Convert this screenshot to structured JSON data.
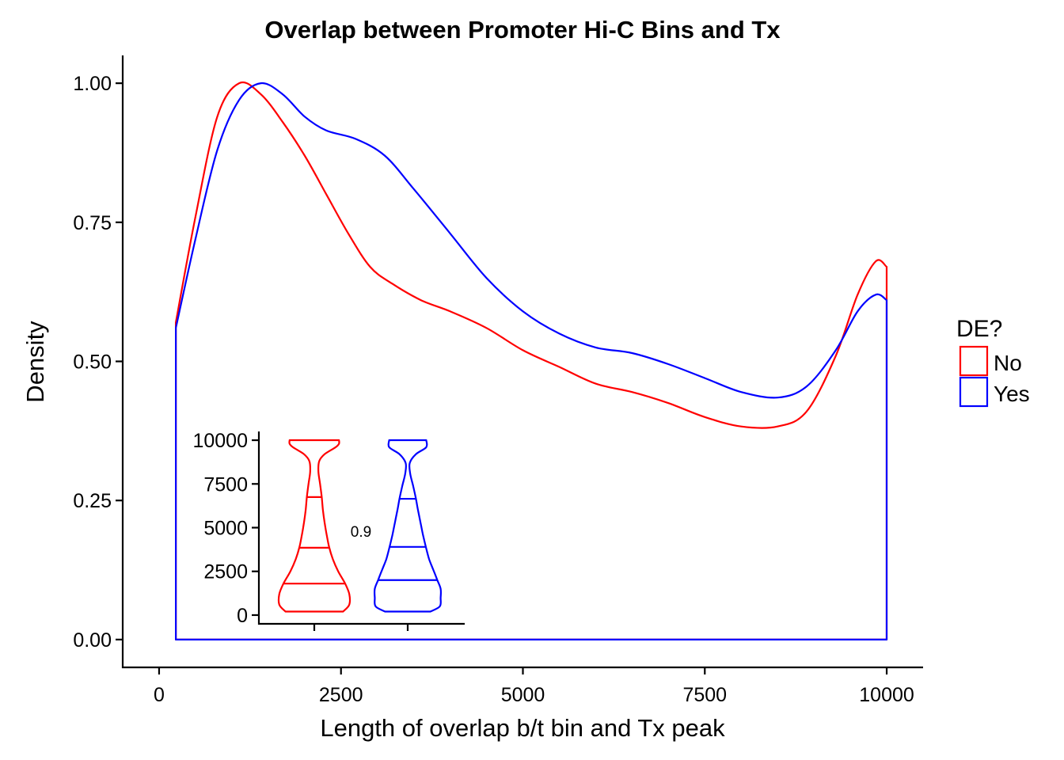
{
  "chart_data": [
    {
      "type": "area",
      "title": "Overlap between Promoter Hi-C Bins and Tx",
      "xlabel": "Length of overlap b/t bin and Tx peak",
      "ylabel": "Density",
      "xlim": [
        -500,
        10500
      ],
      "ylim": [
        -0.05,
        1.05
      ],
      "x_ticks": [
        0,
        2500,
        5000,
        7500,
        10000
      ],
      "x_tick_labels": [
        "0",
        "2500",
        "5000",
        "7500",
        "10000"
      ],
      "y_ticks": [
        0,
        0.25,
        0.5,
        0.75,
        1.0
      ],
      "y_tick_labels": [
        "0.00",
        "0.25",
        "0.50",
        "0.75",
        "1.00"
      ],
      "grid": false,
      "legend": {
        "title": "DE?",
        "position": "right"
      },
      "baseline_x_range": [
        230,
        10000
      ],
      "series": [
        {
          "name": "No",
          "color": "#ff0000",
          "points": [
            [
              230,
              0.57
            ],
            [
              500,
              0.76
            ],
            [
              800,
              0.94
            ],
            [
              1100,
              1.0
            ],
            [
              1400,
              0.98
            ],
            [
              1700,
              0.93
            ],
            [
              2000,
              0.87
            ],
            [
              2300,
              0.8
            ],
            [
              2600,
              0.73
            ],
            [
              2900,
              0.67
            ],
            [
              3200,
              0.64
            ],
            [
              3600,
              0.61
            ],
            [
              4000,
              0.59
            ],
            [
              4500,
              0.56
            ],
            [
              5000,
              0.52
            ],
            [
              5500,
              0.49
            ],
            [
              6000,
              0.46
            ],
            [
              6500,
              0.445
            ],
            [
              7000,
              0.425
            ],
            [
              7500,
              0.4
            ],
            [
              8000,
              0.383
            ],
            [
              8500,
              0.383
            ],
            [
              8900,
              0.41
            ],
            [
              9300,
              0.51
            ],
            [
              9600,
              0.62
            ],
            [
              9850,
              0.68
            ],
            [
              10000,
              0.67
            ]
          ]
        },
        {
          "name": "Yes",
          "color": "#0000ff",
          "points": [
            [
              230,
              0.56
            ],
            [
              500,
              0.72
            ],
            [
              800,
              0.88
            ],
            [
              1100,
              0.97
            ],
            [
              1400,
              1.0
            ],
            [
              1700,
              0.98
            ],
            [
              2000,
              0.94
            ],
            [
              2300,
              0.915
            ],
            [
              2700,
              0.9
            ],
            [
              3100,
              0.87
            ],
            [
              3500,
              0.81
            ],
            [
              4000,
              0.73
            ],
            [
              4500,
              0.65
            ],
            [
              5000,
              0.59
            ],
            [
              5500,
              0.55
            ],
            [
              6000,
              0.525
            ],
            [
              6500,
              0.515
            ],
            [
              7000,
              0.495
            ],
            [
              7500,
              0.47
            ],
            [
              8000,
              0.445
            ],
            [
              8500,
              0.435
            ],
            [
              8900,
              0.455
            ],
            [
              9300,
              0.52
            ],
            [
              9600,
              0.59
            ],
            [
              9850,
              0.62
            ],
            [
              10000,
              0.61
            ]
          ]
        }
      ]
    },
    {
      "type": "violin",
      "ylim": [
        -500,
        10500
      ],
      "y_ticks": [
        0,
        2500,
        5000,
        7500,
        10000
      ],
      "y_tick_labels": [
        "0",
        "2500",
        "5000",
        "7500",
        "10000"
      ],
      "annotation": "0.9",
      "series": [
        {
          "name": "No",
          "color": "#ff0000",
          "quantiles": [
            1800,
            3850,
            6750
          ],
          "profile": [
            [
              200,
              0.7
            ],
            [
              600,
              0.85
            ],
            [
              1200,
              0.85
            ],
            [
              1800,
              0.75
            ],
            [
              2500,
              0.58
            ],
            [
              3200,
              0.45
            ],
            [
              3900,
              0.36
            ],
            [
              4600,
              0.3
            ],
            [
              5300,
              0.25
            ],
            [
              6000,
              0.21
            ],
            [
              6750,
              0.18
            ],
            [
              7500,
              0.14
            ],
            [
              8200,
              0.1
            ],
            [
              8800,
              0.12
            ],
            [
              9200,
              0.25
            ],
            [
              9600,
              0.52
            ],
            [
              9800,
              0.6
            ],
            [
              10000,
              0.6
            ]
          ]
        },
        {
          "name": "Yes",
          "color": "#0000ff",
          "quantiles": [
            2000,
            3900,
            6650
          ],
          "profile": [
            [
              200,
              0.55
            ],
            [
              500,
              0.78
            ],
            [
              1000,
              0.8
            ],
            [
              1500,
              0.8
            ],
            [
              2000,
              0.72
            ],
            [
              2600,
              0.62
            ],
            [
              3200,
              0.52
            ],
            [
              3900,
              0.44
            ],
            [
              4600,
              0.37
            ],
            [
              5300,
              0.31
            ],
            [
              6000,
              0.25
            ],
            [
              6650,
              0.2
            ],
            [
              7400,
              0.13
            ],
            [
              8100,
              0.06
            ],
            [
              8700,
              0.05
            ],
            [
              9200,
              0.2
            ],
            [
              9600,
              0.45
            ],
            [
              10000,
              0.45
            ]
          ]
        }
      ]
    }
  ]
}
